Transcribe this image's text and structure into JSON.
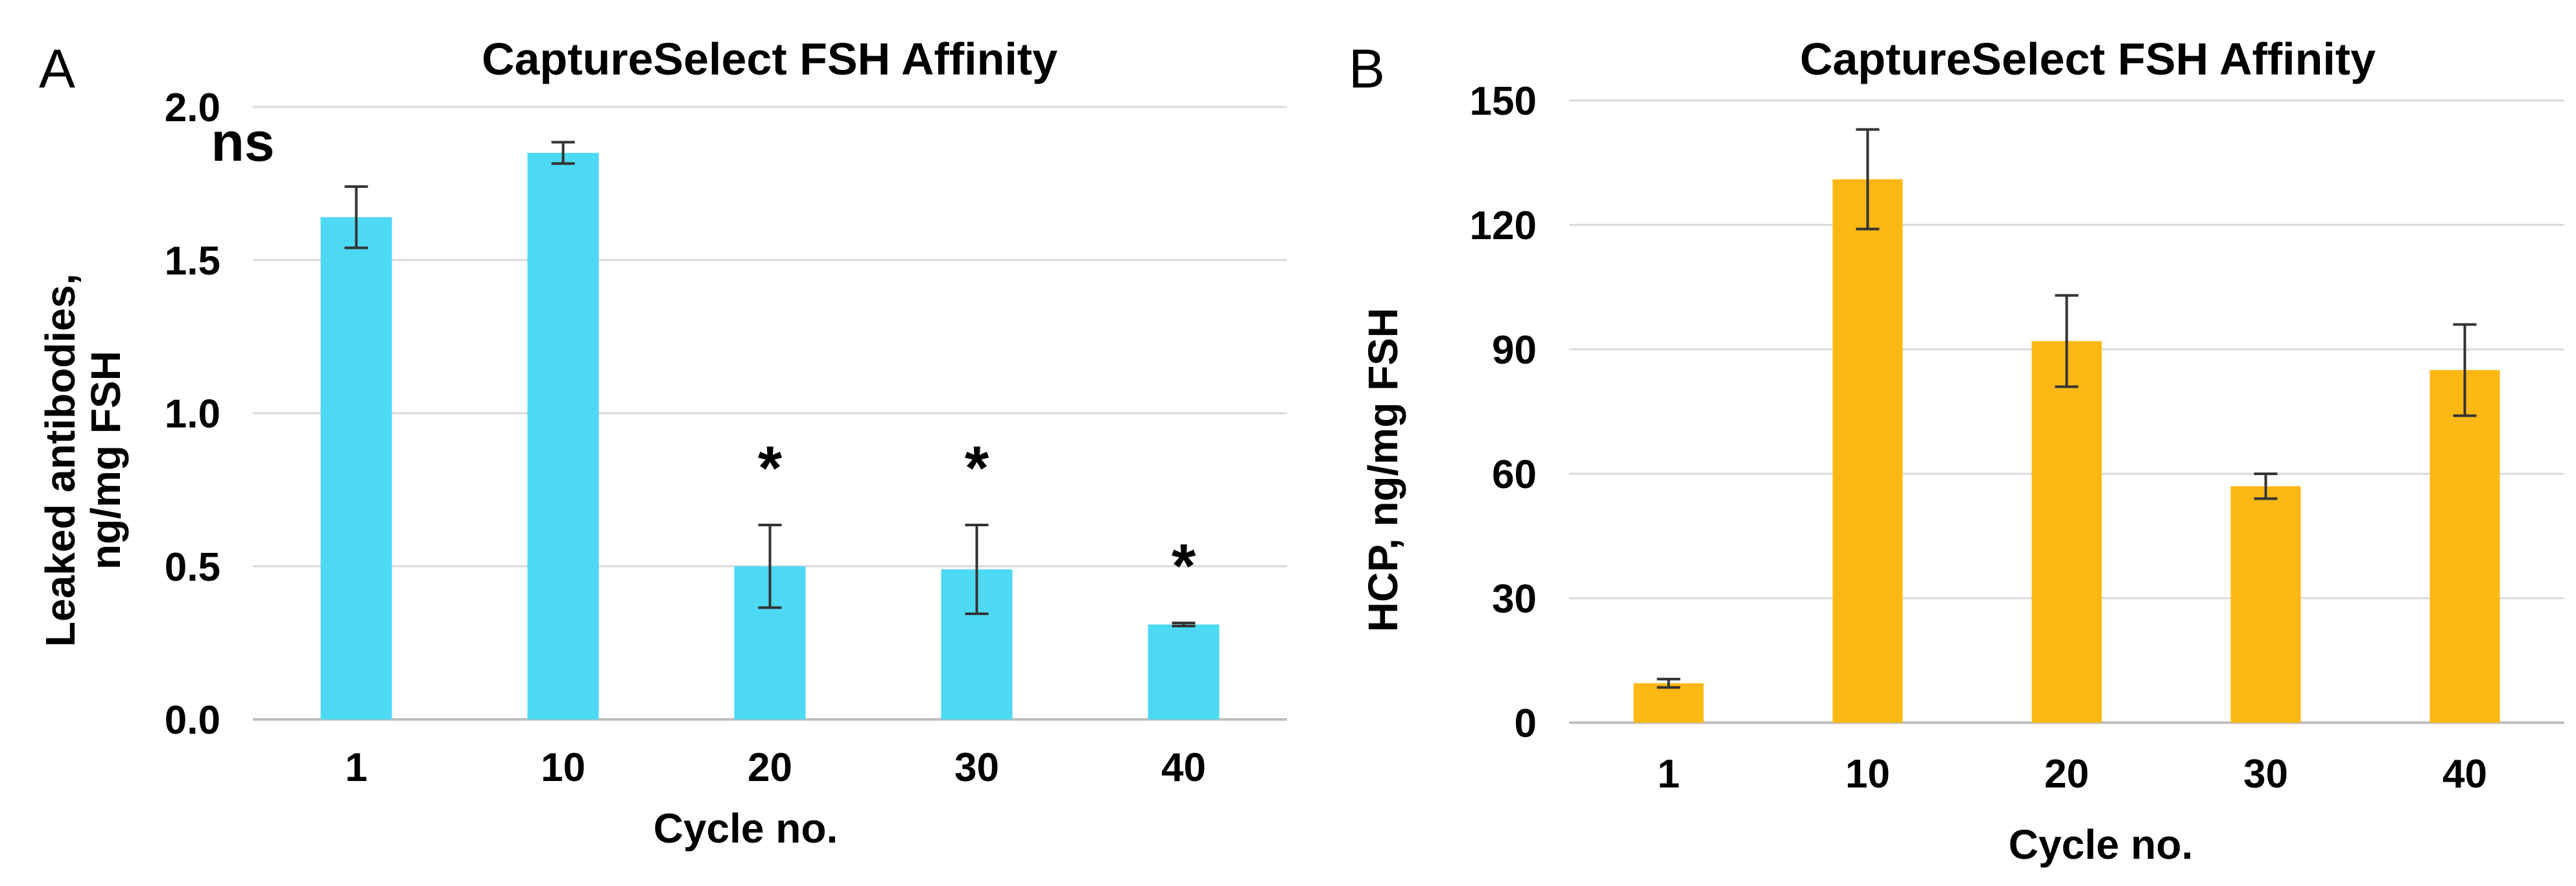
{
  "chart_data": [
    {
      "type": "bar",
      "panel": "A",
      "title": "CaptureSelect FSH Affinity",
      "xlabel": "Cycle no.",
      "ylabel_lines": [
        "Leaked antibodies,",
        "ng/mg FSH"
      ],
      "categories": [
        "1",
        "10",
        "20",
        "30",
        "40"
      ],
      "values": [
        1.64,
        1.85,
        0.5,
        0.49,
        0.31
      ],
      "errors": [
        0.1,
        0.035,
        0.135,
        0.145,
        0.005
      ],
      "ylim": [
        0,
        2.0
      ],
      "yticks": [
        0.0,
        0.5,
        1.0,
        1.5,
        2.0
      ],
      "ytick_labels": [
        "0.0",
        "0.5",
        "1.0",
        "1.5",
        "2.0"
      ],
      "grid": true,
      "color": "#4DD9F4",
      "annotations": [
        "ns",
        "",
        "*",
        "*",
        "*"
      ]
    },
    {
      "type": "bar",
      "panel": "B",
      "title": "CaptureSelect FSH Affinity",
      "xlabel": "Cycle no.",
      "ylabel": "HCP,  ng/mg FSH",
      "categories": [
        "1",
        "10",
        "20",
        "30",
        "40"
      ],
      "values": [
        9.5,
        131,
        92,
        57,
        85
      ],
      "errors": [
        1.0,
        12,
        11,
        3,
        11
      ],
      "ylim": [
        0,
        150
      ],
      "yticks": [
        0,
        30,
        60,
        90,
        120,
        150
      ],
      "ytick_labels": [
        "0",
        "30",
        "60",
        "90",
        "120",
        "150"
      ],
      "grid": true,
      "color": "#FDB813",
      "annotations": [
        "",
        "",
        "",
        "",
        ""
      ]
    }
  ]
}
